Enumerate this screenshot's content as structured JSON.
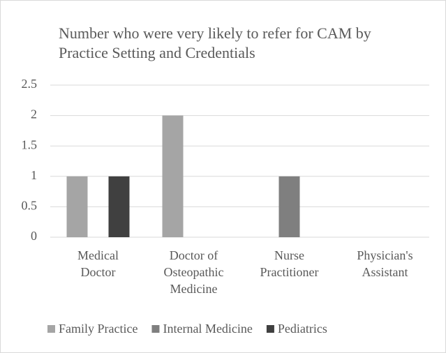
{
  "chart_data": {
    "type": "bar",
    "title": "Number who were very likely to refer for CAM by Practice Setting and Credentials",
    "categories": [
      "Medical Doctor",
      "Doctor of Osteopathic Medicine",
      "Nurse Practitioner",
      "Physician's Assistant"
    ],
    "series": [
      {
        "name": "Family Practice",
        "color": "#a5a5a5",
        "values": [
          1,
          2,
          0,
          0
        ]
      },
      {
        "name": "Internal Medicine",
        "color": "#7f7f7f",
        "values": [
          0,
          0,
          1,
          0
        ]
      },
      {
        "name": "Pediatrics",
        "color": "#404040",
        "values": [
          1,
          0,
          0,
          0
        ]
      }
    ],
    "ylim": [
      0,
      2.5
    ],
    "yticks": [
      0,
      0.5,
      1,
      1.5,
      2,
      2.5
    ],
    "grid": true,
    "legend": "bottom"
  }
}
